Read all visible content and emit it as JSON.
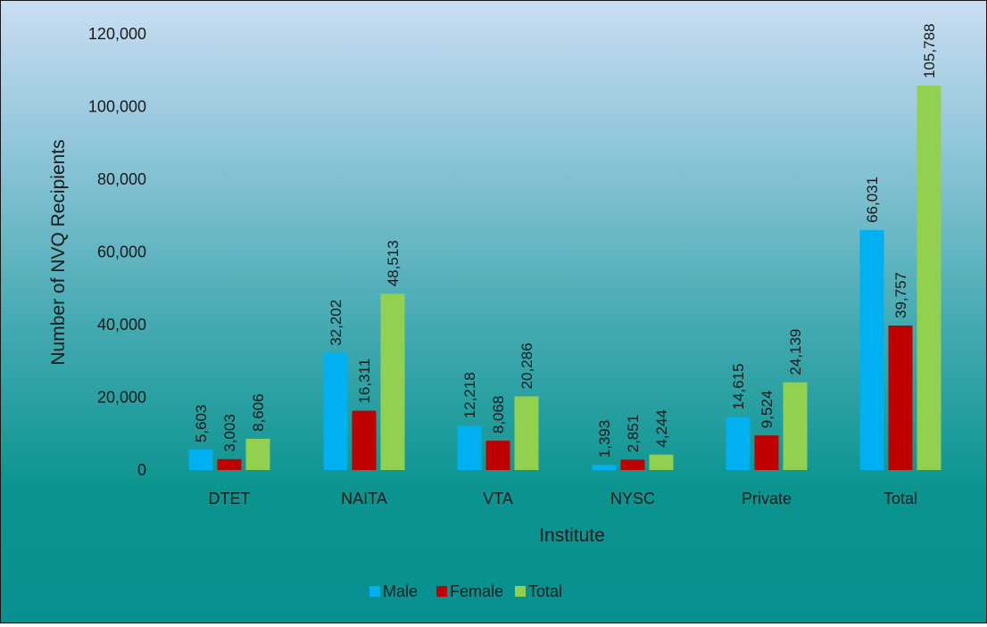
{
  "chart_data": {
    "type": "bar",
    "title": "",
    "xlabel": "Institute",
    "ylabel": "Number of NVQ Recipients",
    "categories": [
      "DTET",
      "NAITA",
      "VTA",
      "NYSC",
      "Private",
      "Total"
    ],
    "series": [
      {
        "name": "Male",
        "color": "#00b0f0",
        "values": [
          5603,
          32202,
          12218,
          1393,
          14615,
          66031
        ]
      },
      {
        "name": "Female",
        "color": "#c00000",
        "values": [
          3003,
          16311,
          8068,
          2851,
          9524,
          39757
        ]
      },
      {
        "name": "Total",
        "color": "#92d050",
        "values": [
          8606,
          48513,
          20286,
          4244,
          24139,
          105788
        ]
      }
    ],
    "yticks": [
      0,
      20000,
      40000,
      60000,
      80000,
      100000,
      120000
    ],
    "ylim": [
      0,
      120000
    ],
    "grid": false,
    "legend": "bottom"
  }
}
